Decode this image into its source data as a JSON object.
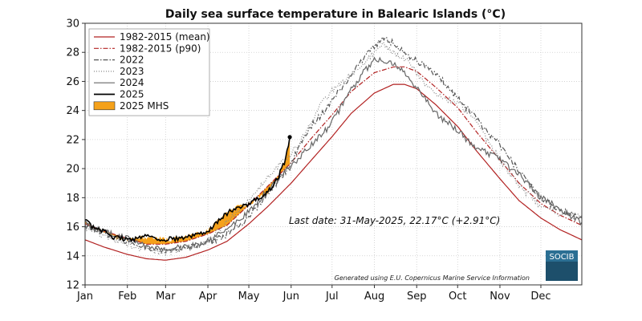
{
  "chart_data": {
    "type": "line",
    "title": "Daily sea surface temperature in Balearic Islands (°C)",
    "xlabel": "",
    "ylabel": "",
    "ylim": [
      12,
      30
    ],
    "y_ticks": [
      "12",
      "14",
      "16",
      "18",
      "20",
      "22",
      "24",
      "26",
      "28",
      "30"
    ],
    "x_tick_labels": [
      "Jan",
      "Feb",
      "Mar",
      "Apr",
      "May",
      "Jun",
      "Jul",
      "Aug",
      "Sep",
      "Oct",
      "Nov",
      "Dec"
    ],
    "x_unit": "day of year",
    "grid": true,
    "legend_position": "top-left",
    "series": [
      {
        "name": "1982-2015 (mean)",
        "color": "#b22222",
        "style": "solid",
        "x": [
          1,
          15,
          32,
          46,
          60,
          75,
          91,
          105,
          121,
          135,
          152,
          166,
          182,
          196,
          213,
          227,
          235,
          244,
          258,
          274,
          288,
          305,
          319,
          335,
          349,
          365
        ],
        "values": [
          15.1,
          14.6,
          14.1,
          13.8,
          13.7,
          13.9,
          14.4,
          15.0,
          16.2,
          17.4,
          19.0,
          20.5,
          22.2,
          23.8,
          25.2,
          25.8,
          25.8,
          25.5,
          24.4,
          22.9,
          21.2,
          19.3,
          17.8,
          16.6,
          15.8,
          15.1
        ]
      },
      {
        "name": "1982-2015 (p90)",
        "color": "#b22222",
        "style": "dashdot",
        "x": [
          1,
          15,
          32,
          46,
          60,
          75,
          91,
          105,
          121,
          135,
          152,
          166,
          182,
          196,
          213,
          227,
          235,
          244,
          258,
          274,
          288,
          305,
          319,
          335,
          349,
          365
        ],
        "values": [
          16.2,
          15.7,
          15.2,
          14.8,
          14.8,
          15.0,
          15.5,
          16.1,
          17.5,
          18.8,
          20.4,
          22.0,
          23.7,
          25.3,
          26.6,
          27.0,
          27.0,
          26.7,
          25.6,
          24.2,
          22.5,
          20.6,
          19.0,
          17.6,
          16.8,
          16.1
        ]
      },
      {
        "name": "2022",
        "color": "#555555",
        "style": "dashdot",
        "x": [
          1,
          15,
          32,
          46,
          60,
          75,
          91,
          105,
          121,
          135,
          152,
          160,
          166,
          175,
          182,
          196,
          205,
          213,
          220,
          227,
          235,
          244,
          258,
          274,
          288,
          305,
          319,
          335,
          349,
          365
        ],
        "values": [
          16.3,
          15.6,
          15.0,
          14.5,
          14.3,
          14.6,
          14.8,
          15.5,
          16.6,
          18.3,
          20.3,
          22.0,
          22.9,
          23.8,
          24.7,
          26.5,
          27.6,
          28.4,
          29.0,
          28.6,
          28.0,
          27.4,
          26.6,
          24.8,
          23.4,
          21.6,
          19.8,
          18.0,
          17.1,
          16.6
        ]
      },
      {
        "name": "2023",
        "color": "#888888",
        "style": "dotted",
        "x": [
          1,
          15,
          32,
          46,
          60,
          75,
          91,
          105,
          121,
          135,
          152,
          166,
          175,
          182,
          196,
          205,
          213,
          220,
          227,
          235,
          244,
          258,
          274,
          288,
          305,
          319,
          335,
          349,
          365
        ],
        "values": [
          16.0,
          15.3,
          14.8,
          14.4,
          14.2,
          14.5,
          15.0,
          16.4,
          17.8,
          19.5,
          21.0,
          23.0,
          24.6,
          25.3,
          26.4,
          27.3,
          28.0,
          28.6,
          28.0,
          27.6,
          26.6,
          25.0,
          24.6,
          23.2,
          20.6,
          18.8,
          17.4,
          16.9,
          16.7
        ]
      },
      {
        "name": "2024",
        "color": "#666666",
        "style": "solid",
        "x": [
          1,
          15,
          32,
          46,
          60,
          75,
          91,
          105,
          121,
          135,
          152,
          166,
          175,
          182,
          196,
          205,
          213,
          220,
          227,
          235,
          244,
          258,
          274,
          288,
          305,
          319,
          335,
          349,
          365
        ],
        "values": [
          16.1,
          15.6,
          15.2,
          14.7,
          14.4,
          14.6,
          15.0,
          15.8,
          17.0,
          18.5,
          20.2,
          21.5,
          22.4,
          23.2,
          25.4,
          26.6,
          27.6,
          27.4,
          27.3,
          26.5,
          25.6,
          23.8,
          22.6,
          21.4,
          20.6,
          19.6,
          18.0,
          17.2,
          16.3
        ]
      },
      {
        "name": "2025",
        "color": "#000000",
        "style": "solid",
        "x": [
          1,
          8,
          15,
          22,
          32,
          40,
          46,
          55,
          60,
          68,
          75,
          82,
          91,
          98,
          105,
          112,
          121,
          128,
          135,
          142,
          147,
          151
        ],
        "values": [
          16.4,
          15.9,
          15.7,
          15.3,
          15.1,
          15.2,
          15.3,
          15.2,
          15.1,
          15.2,
          15.3,
          15.5,
          15.7,
          16.4,
          16.9,
          17.3,
          17.6,
          18.0,
          18.4,
          19.3,
          20.4,
          22.17
        ]
      }
    ],
    "legend_swatch": {
      "name": "2025 MHS",
      "color": "#f5a11a"
    },
    "annotation": "Last date: 31-May-2025, 22.17°C (+2.91°C)",
    "credit": "Generated using E.U. Copernicus Marine Service Information",
    "logo": "SOCIB"
  }
}
